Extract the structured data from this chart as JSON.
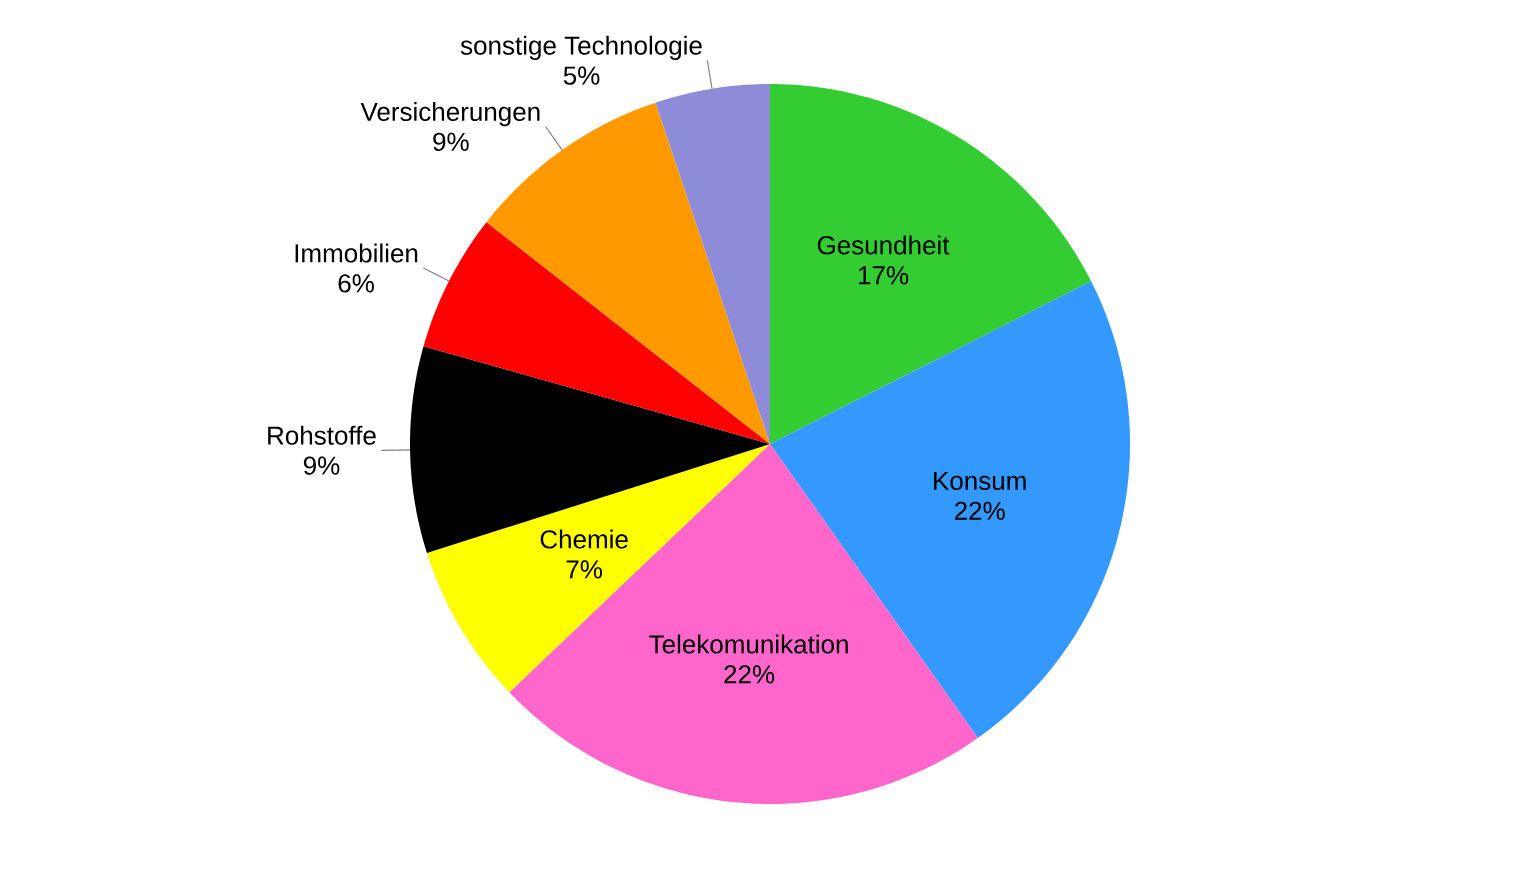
{
  "chart_data": {
    "type": "pie",
    "categories": [
      "Gesundheit",
      "Konsum",
      "Telekomunikation",
      "Chemie",
      "Rohstoffe",
      "Immobilien",
      "Versicherungen",
      "sonstige Technologie"
    ],
    "values": [
      17,
      22,
      22,
      7,
      9,
      6,
      9,
      5
    ],
    "value_labels": [
      "17%",
      "22%",
      "22%",
      "7%",
      "9%",
      "6%",
      "9%",
      "5%"
    ],
    "colors": [
      "#33cc33",
      "#3399ff",
      "#ff66cc",
      "#ffff00",
      "#000000",
      "#ff0000",
      "#ff9900",
      "#8e8cd8"
    ]
  }
}
